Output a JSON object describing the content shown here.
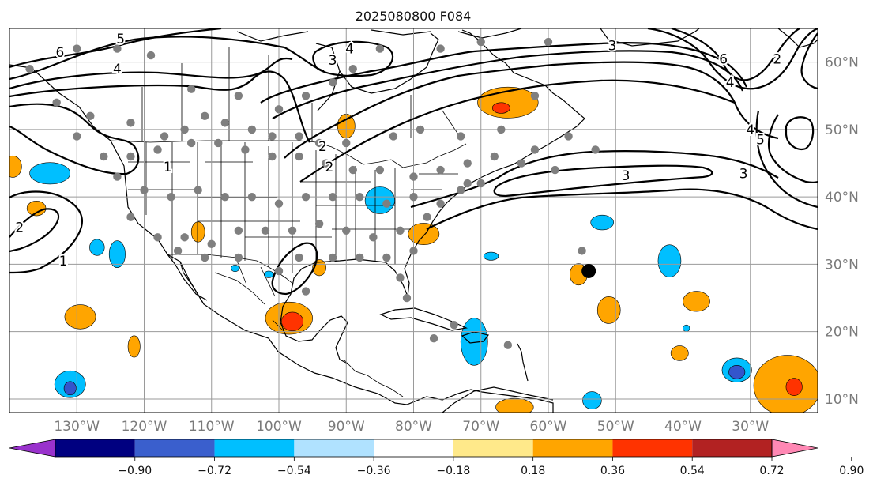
{
  "title": "2025080800 F084",
  "map": {
    "lon_range": [
      -140,
      -20
    ],
    "lat_range": [
      8,
      65
    ],
    "lon_ticks": [
      "130°W",
      "120°W",
      "110°W",
      "100°W",
      "90°W",
      "80°W",
      "70°W",
      "60°W",
      "50°W",
      "40°W",
      "30°W"
    ],
    "lon_values": [
      -130,
      -120,
      -110,
      -100,
      -90,
      -80,
      -70,
      -60,
      -50,
      -40,
      -30
    ],
    "lat_ticks": [
      "60°N",
      "50°N",
      "40°N",
      "30°N",
      "20°N",
      "10°N"
    ],
    "lat_values": [
      60,
      50,
      40,
      30,
      20,
      10
    ],
    "contour_labels": [
      {
        "text": "6",
        "lon": -132.5,
        "lat": 61.5
      },
      {
        "text": "5",
        "lon": -123.5,
        "lat": 63.5
      },
      {
        "text": "4",
        "lon": -124,
        "lat": 59
      },
      {
        "text": "3",
        "lon": -92,
        "lat": 60.3
      },
      {
        "text": "4",
        "lon": -89.5,
        "lat": 62
      },
      {
        "text": "3",
        "lon": -50.5,
        "lat": 62.5
      },
      {
        "text": "6",
        "lon": -34,
        "lat": 60.5
      },
      {
        "text": "4",
        "lon": -33,
        "lat": 57
      },
      {
        "text": "2",
        "lon": -26,
        "lat": 60.5
      },
      {
        "text": "2",
        "lon": -93.5,
        "lat": 47.5
      },
      {
        "text": "2",
        "lon": -92.5,
        "lat": 44.5
      },
      {
        "text": "1",
        "lon": -116.5,
        "lat": 44.5
      },
      {
        "text": "3",
        "lon": -48.5,
        "lat": 43.2
      },
      {
        "text": "4",
        "lon": -30,
        "lat": 50
      },
      {
        "text": "5",
        "lon": -28.5,
        "lat": 48.5
      },
      {
        "text": "3",
        "lon": -31,
        "lat": 43.5
      },
      {
        "text": "2",
        "lon": -138.5,
        "lat": 35.5
      },
      {
        "text": "1",
        "lon": -132,
        "lat": 30.5
      }
    ],
    "shaded_anomalies": [
      {
        "color": "#ffa500",
        "lon": -66,
        "lat": 54,
        "rx": 4.5,
        "ry": 2.3
      },
      {
        "color": "#ff3300",
        "lon": -67,
        "lat": 53.2,
        "rx": 1.3,
        "ry": 0.8
      },
      {
        "color": "#ffa500",
        "lon": -90,
        "lat": 50.5,
        "rx": 1.3,
        "ry": 1.8
      },
      {
        "color": "#00bfff",
        "lon": -134,
        "lat": 43.5,
        "rx": 3,
        "ry": 1.6
      },
      {
        "color": "#ffa500",
        "lon": -139.5,
        "lat": 44.5,
        "rx": 1.3,
        "ry": 1.6
      },
      {
        "color": "#ffa500",
        "lon": -136,
        "lat": 38.3,
        "rx": 1.4,
        "ry": 1.1
      },
      {
        "color": "#00bfff",
        "lon": -85,
        "lat": 39.5,
        "rx": 2.2,
        "ry": 2
      },
      {
        "color": "#ffa500",
        "lon": -78.5,
        "lat": 34.5,
        "rx": 2.3,
        "ry": 1.6
      },
      {
        "color": "#ffa500",
        "lon": -112,
        "lat": 34.8,
        "rx": 1,
        "ry": 1.5
      },
      {
        "color": "#00bfff",
        "lon": -124,
        "lat": 31.5,
        "rx": 1.2,
        "ry": 2
      },
      {
        "color": "#00bfff",
        "lon": -127,
        "lat": 32.5,
        "rx": 1.1,
        "ry": 1.2
      },
      {
        "color": "#00bfff",
        "lon": -106.5,
        "lat": 29.4,
        "rx": 0.6,
        "ry": 0.5
      },
      {
        "color": "#00bfff",
        "lon": -101.5,
        "lat": 28.5,
        "rx": 0.7,
        "ry": 0.5
      },
      {
        "color": "#ffa500",
        "lon": -94,
        "lat": 29.5,
        "rx": 1,
        "ry": 1.2
      },
      {
        "color": "#ffa500",
        "lon": -98.5,
        "lat": 22,
        "rx": 3.5,
        "ry": 2.4
      },
      {
        "color": "#ff3300",
        "lon": -98,
        "lat": 21.5,
        "rx": 1.6,
        "ry": 1.4
      },
      {
        "color": "#ffa500",
        "lon": -129.5,
        "lat": 22.2,
        "rx": 2.3,
        "ry": 1.8
      },
      {
        "color": "#ffa500",
        "lon": -121.5,
        "lat": 17.8,
        "rx": 0.9,
        "ry": 1.6
      },
      {
        "color": "#00bfff",
        "lon": -131,
        "lat": 12.2,
        "rx": 2.3,
        "ry": 2
      },
      {
        "color": "#3355cc",
        "lon": -131,
        "lat": 11.6,
        "rx": 0.9,
        "ry": 1
      },
      {
        "color": "#00bfff",
        "lon": -71,
        "lat": 18.5,
        "rx": 2,
        "ry": 3.5
      },
      {
        "color": "#00bfff",
        "lon": -68.5,
        "lat": 31.2,
        "rx": 1.1,
        "ry": 0.6
      },
      {
        "color": "#ffa500",
        "lon": -55.5,
        "lat": 28.5,
        "rx": 1.3,
        "ry": 1.6
      },
      {
        "color": "#00bfff",
        "lon": -52,
        "lat": 36.2,
        "rx": 1.7,
        "ry": 1.1
      },
      {
        "color": "#00bfff",
        "lon": -42,
        "lat": 30.5,
        "rx": 1.7,
        "ry": 2.4
      },
      {
        "color": "#ffa500",
        "lon": -51,
        "lat": 23.2,
        "rx": 1.7,
        "ry": 2
      },
      {
        "color": "#ffa500",
        "lon": -38,
        "lat": 24.5,
        "rx": 2,
        "ry": 1.5
      },
      {
        "color": "#ffa500",
        "lon": -40.5,
        "lat": 16.8,
        "rx": 1.3,
        "ry": 1.1
      },
      {
        "color": "#00bfff",
        "lon": -39.5,
        "lat": 20.5,
        "rx": 0.5,
        "ry": 0.5
      },
      {
        "color": "#00bfff",
        "lon": -32,
        "lat": 14.3,
        "rx": 2.2,
        "ry": 1.8
      },
      {
        "color": "#3355cc",
        "lon": -32,
        "lat": 14,
        "rx": 1.2,
        "ry": 1
      },
      {
        "color": "#00bfff",
        "lon": -53.5,
        "lat": 9.8,
        "rx": 1.4,
        "ry": 1.3
      },
      {
        "color": "#ffa500",
        "lon": -65,
        "lat": 8.8,
        "rx": 2.8,
        "ry": 1.3
      },
      {
        "color": "#ffa500",
        "lon": -24.5,
        "lat": 12,
        "rx": 5,
        "ry": 4.5
      },
      {
        "color": "#ff3300",
        "lon": -23.5,
        "lat": 11.8,
        "rx": 1.2,
        "ry": 1.3
      }
    ],
    "special_marker": {
      "lon": -54,
      "lat": 29
    }
  },
  "colorbar": {
    "tick_labels": [
      "−0.90",
      "−0.72",
      "−0.54",
      "−0.36",
      "−0.18",
      "0.18",
      "0.36",
      "0.54",
      "0.72",
      "0.90"
    ],
    "colors": [
      "#9932cc",
      "#000080",
      "#3a5fcd",
      "#00bfff",
      "#b0e2ff",
      "#ffffff",
      "#ffe98a",
      "#ffa500",
      "#ff3300",
      "#b22222",
      "#ff88b4"
    ]
  }
}
